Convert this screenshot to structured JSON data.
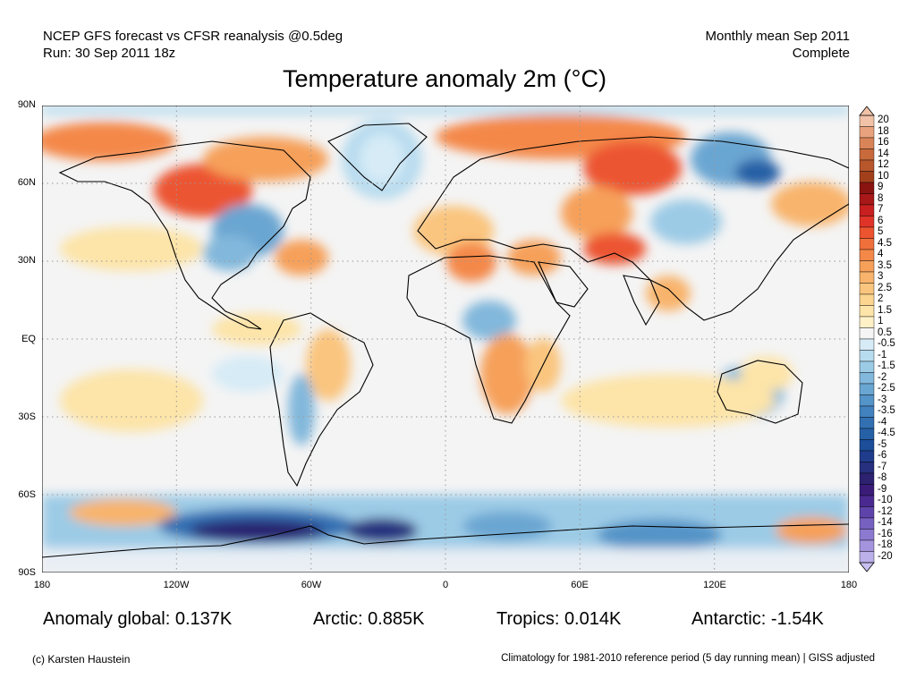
{
  "header": {
    "line1": "NCEP GFS forecast vs CFSR reanalysis @0.5deg",
    "line2": "Run: 30 Sep 2011 18z",
    "right1": "Monthly mean Sep 2011",
    "right2": "Complete"
  },
  "title": "Temperature anomaly 2m (°C)",
  "lat_labels": [
    "90N",
    "60N",
    "30N",
    "EQ",
    "30S",
    "60S",
    "90S"
  ],
  "lon_labels": [
    "180",
    "120W",
    "60W",
    "0",
    "60E",
    "120E",
    "180"
  ],
  "colorbar": {
    "labels": [
      "20",
      "18",
      "16",
      "14",
      "12",
      "10",
      "9",
      "8",
      "7",
      "6",
      "5",
      "4.5",
      "4",
      "3.5",
      "3",
      "2.5",
      "2",
      "1.5",
      "1",
      "0.5",
      "-0.5",
      "-1",
      "-1.5",
      "-2",
      "-2.5",
      "-3",
      "-3.5",
      "-4",
      "-4.5",
      "-5",
      "-6",
      "-7",
      "-8",
      "-9",
      "-10",
      "-12",
      "-14",
      "-16",
      "-18",
      "-20"
    ],
    "colors": [
      "#f2c2a8",
      "#e8a27e",
      "#d98458",
      "#c86a3c",
      "#b8562c",
      "#a2401c",
      "#8a1410",
      "#a81818",
      "#c82020",
      "#e03428",
      "#ec5430",
      "#f0703c",
      "#f48848",
      "#f6a05a",
      "#f8b46c",
      "#fac57e",
      "#fcd690",
      "#fde4a8",
      "#fef1c8",
      "#f5f5f5",
      "#d6ebf6",
      "#b8dcef",
      "#9ccbe6",
      "#82b8dc",
      "#6aa6d2",
      "#5494c8",
      "#4282be",
      "#3270b2",
      "#2660a6",
      "#1c4e9a",
      "#203c8c",
      "#26307e",
      "#2c2270",
      "#3a1c78",
      "#4a2a90",
      "#5e44aa",
      "#7660c0",
      "#8c7ad0",
      "#a494de",
      "#bcb0ea"
    ],
    "top_color": "#f2c2a8",
    "bottom_color": "#c8c0f0"
  },
  "stats": {
    "global": "Anomaly global: 0.137K",
    "arctic": "Arctic: 0.885K",
    "tropics": "Tropics: 0.014K",
    "antarctic": "Antarctic: -1.54K"
  },
  "footer": {
    "left": "(c) Karsten Haustein",
    "right": "Climatology for 1981-2010 reference period (5 day running mean) | GISS adjusted"
  }
}
